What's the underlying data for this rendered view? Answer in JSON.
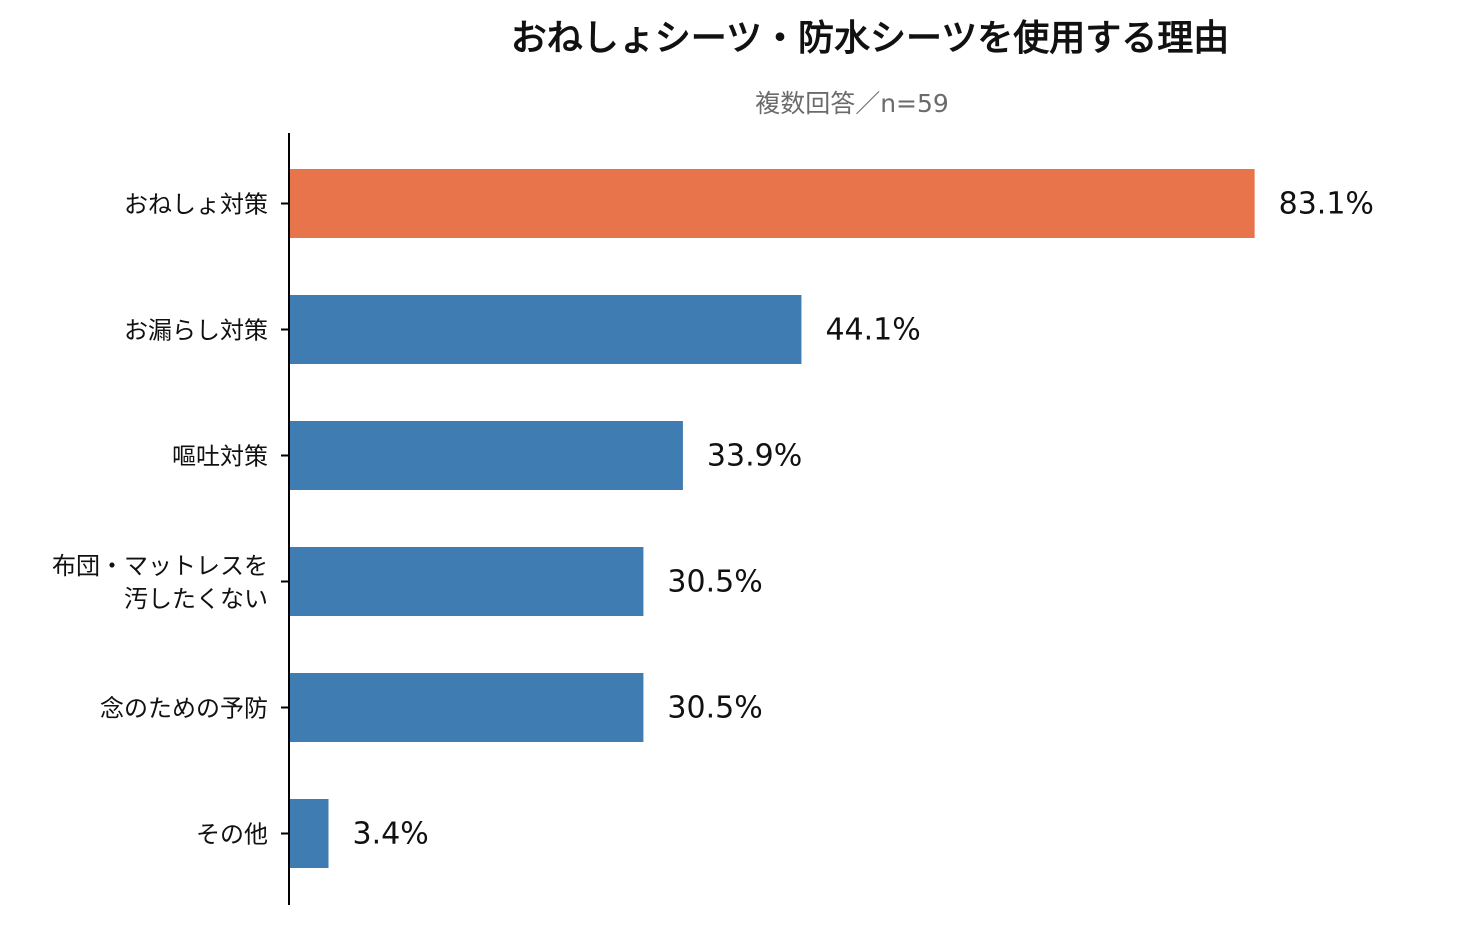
{
  "chart_data": {
    "type": "bar",
    "orientation": "horizontal",
    "title": "おねしょシーツ・防水シーツを使用する理由",
    "subtitle": "複数回答／n=59",
    "categories": [
      [
        "おねしょ対策"
      ],
      [
        "お漏らし対策"
      ],
      [
        "嘔吐対策"
      ],
      [
        "布団・マットレスを",
        "汚したくない"
      ],
      [
        "念のための予防"
      ],
      [
        "その他"
      ]
    ],
    "values": [
      83.1,
      44.1,
      33.9,
      30.5,
      30.5,
      3.4
    ],
    "value_labels": [
      "83.1%",
      "44.1%",
      "33.9%",
      "30.5%",
      "30.5%",
      "3.4%"
    ],
    "highlight_index": 0,
    "xlim": [
      0,
      100
    ],
    "grid": false,
    "legend": "none",
    "colors": {
      "highlight": "#e8744c",
      "default": "#3e7cb1",
      "axis": "#000000"
    }
  }
}
